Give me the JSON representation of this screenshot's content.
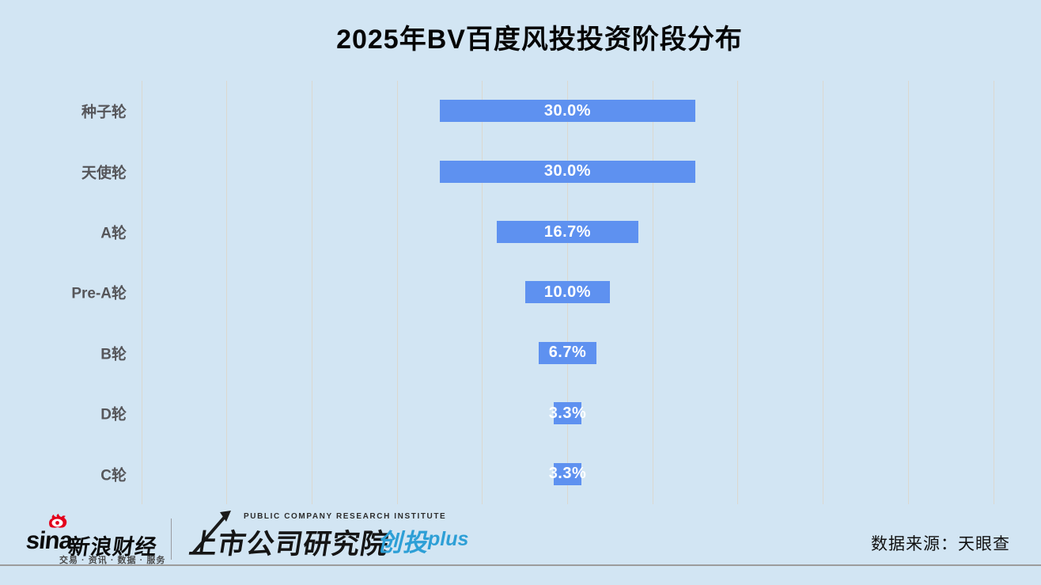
{
  "title": "2025年BV百度风投投资阶段分布",
  "chart_data": {
    "type": "bar",
    "orientation": "horizontal-centered-funnel",
    "title": "2025年BV百度风投投资阶段分布",
    "categories": [
      "种子轮",
      "天使轮",
      "A轮",
      "Pre-A轮",
      "B轮",
      "D轮",
      "C轮"
    ],
    "values": [
      30.0,
      30.0,
      16.7,
      10.0,
      6.7,
      3.3,
      3.3
    ],
    "labels": [
      "30.0%",
      "30.0%",
      "16.7%",
      "10.0%",
      "6.7%",
      "3.3%",
      "3.3%"
    ],
    "unit": "%",
    "xlim": [
      -50,
      50
    ],
    "gridline_step_pct": 10,
    "grid": true,
    "legend": "none",
    "bar_color": "#5e91f0",
    "value_label_color": "#ffffff",
    "category_label_color": "#56565a",
    "background_color": "#d2e5f3",
    "gridline_color": "#dbd8d0"
  },
  "footer": {
    "sina": {
      "brand": "sina",
      "brand_cn": "新浪财经",
      "tagline": "交易 · 资讯 · 数据 · 服务",
      "flame_icon_color": "#e3001b"
    },
    "pcri": {
      "en_line": "PUBLIC COMPANY RESEARCH INSTITUTE",
      "cn_line": "上市公司研究院"
    },
    "chuangtou": {
      "main": "创投",
      "suffix": "plus",
      "color": "#2d9fd6"
    },
    "source": "数据来源：天眼查"
  }
}
